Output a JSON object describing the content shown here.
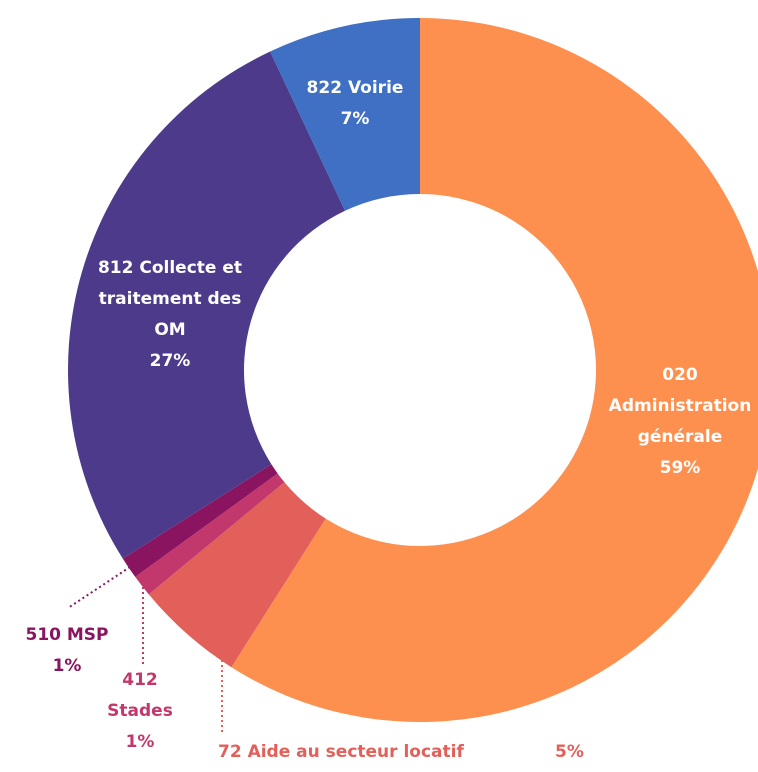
{
  "chart_data": {
    "type": "donut",
    "categories": [
      "020 Administration générale",
      "72 Aide au secteur locatif",
      "412 Stades",
      "510 MSP",
      "812 Collecte et traitement des OM",
      "822 Voirie"
    ],
    "values": [
      59,
      5,
      1,
      1,
      27,
      7
    ],
    "value_labels": [
      "59%",
      "5%",
      "1%",
      "1%",
      "27%",
      "7%"
    ],
    "colors": [
      "#fd8f4f",
      "#e3605a",
      "#c2386c",
      "#8a1460",
      "#4e3a8a",
      "#3f70c4"
    ]
  }
}
